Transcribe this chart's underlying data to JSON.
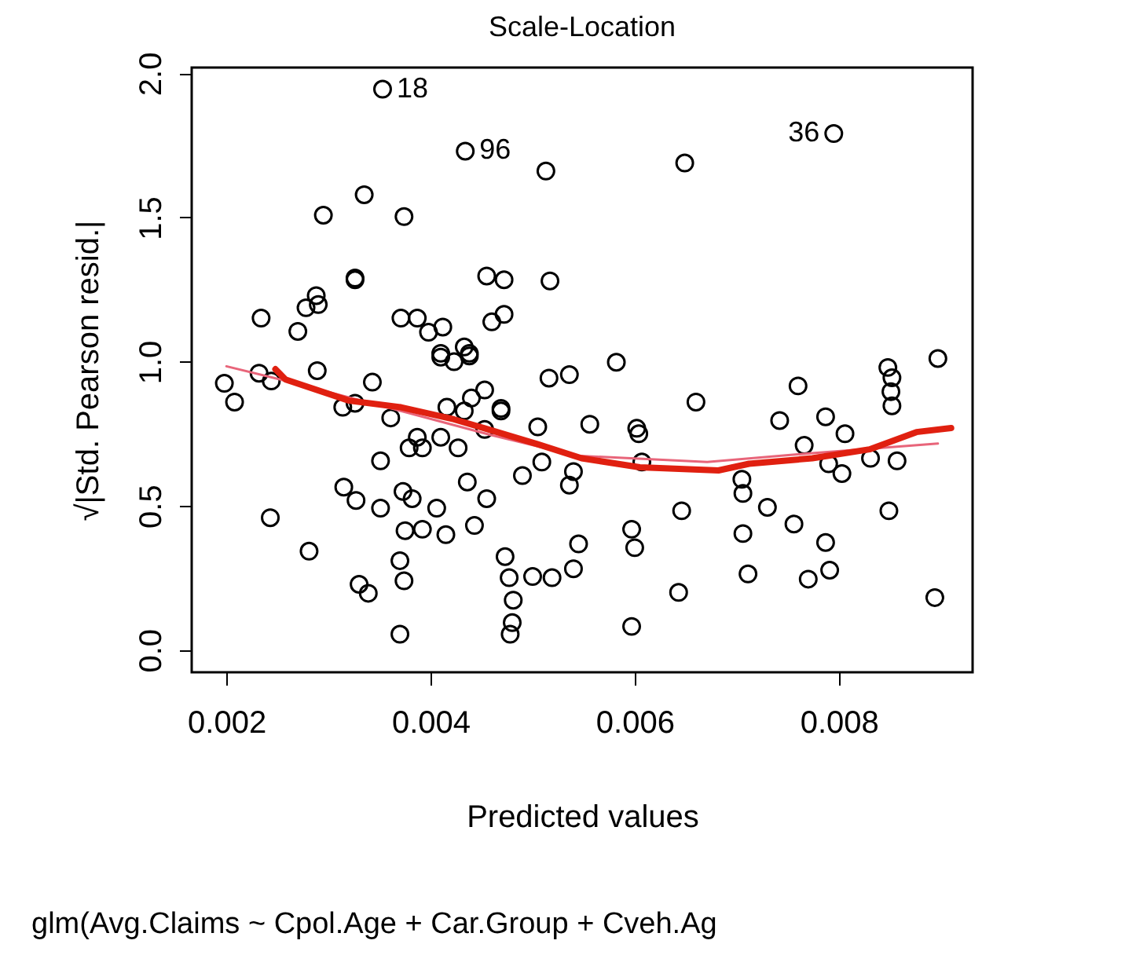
{
  "chart_data": {
    "type": "scatter",
    "title": "Scale-Location",
    "xlabel": "Predicted values",
    "ylabel": "√|Std. Pearson resid.|",
    "annotations": [
      {
        "text": "18",
        "x": 0.00353,
        "y": 1.945
      },
      {
        "text": "96",
        "x": 0.00434,
        "y": 1.73
      },
      {
        "text": "36",
        "x": 0.00795,
        "y": 1.791
      },
      "glm(Avg.Claims ~ Cpol.Age + Car.Group + Cveh.Ag"
    ],
    "xlim": [
      0.00166,
      0.00931
    ],
    "ylim": [
      -0.077,
      2.02
    ],
    "xticks": [
      0.002,
      0.004,
      0.006,
      0.008
    ],
    "yticks": [
      {
        "value": 0,
        "label": "0.0"
      },
      {
        "value": 0.5,
        "label": "0.5"
      },
      {
        "value": 1,
        "label": "1.0"
      },
      {
        "value": 1.5,
        "label": "1.5"
      },
      {
        "value": 2,
        "label": "2.0"
      }
    ],
    "grid": false,
    "series": [
      {
        "marker": "circle",
        "color": "#000000",
        "x": [
          0.00198,
          0.00208,
          0.00232,
          0.00244,
          0.00289,
          0.00343,
          0.00314,
          0.00326,
          0.00361,
          0.0041,
          0.00423,
          0.00438,
          0.00416,
          0.00433,
          0.0044,
          0.00453,
          0.00469,
          0.00469,
          0.00453,
          0.00387,
          0.00379,
          0.00392,
          0.0041,
          0.00427,
          0.00505,
          0.00516,
          0.00536,
          0.00509,
          0.0049,
          0.0054,
          0.00536,
          0.00545,
          0.0054,
          0.00351,
          0.00315,
          0.00327,
          0.00351,
          0.00373,
          0.00382,
          0.00406,
          0.00436,
          0.00455,
          0.00243,
          0.00281,
          0.00375,
          0.00392,
          0.00415,
          0.00443,
          0.00473,
          0.00477,
          0.00481,
          0.0048,
          0.00478,
          0.0037,
          0.00374,
          0.0033,
          0.00339,
          0.0037,
          0.005,
          0.00519,
          0.00582,
          0.00556,
          0.0066,
          0.00602,
          0.00604,
          0.00607,
          0.00597,
          0.006,
          0.00646,
          0.00643,
          0.00597,
          0.00705,
          0.00706,
          0.00706,
          0.00711,
          0.0073,
          0.00756,
          0.0077,
          0.00787,
          0.00791,
          0.00742,
          0.0076,
          0.00766,
          0.00787,
          0.00806,
          0.0079,
          0.00803,
          0.00831,
          0.00857,
          0.00849,
          0.00848,
          0.00852,
          0.00851,
          0.00852,
          0.00897,
          0.00894,
          0.00353,
          0.00434,
          0.00513,
          0.00335,
          0.00295,
          0.00374,
          0.00326,
          0.00326,
          0.00455,
          0.00472,
          0.00517,
          0.00234,
          0.0027,
          0.00278,
          0.00288,
          0.0029,
          0.00371,
          0.00387,
          0.00398,
          0.00412,
          0.0046,
          0.00472,
          0.0041,
          0.00433,
          0.00438,
          0.00649,
          0.00795
        ],
        "values": [
          0.925,
          0.86,
          0.96,
          0.933,
          0.969,
          0.929,
          0.842,
          0.856,
          0.805,
          1.016,
          1.0,
          1.02,
          0.842,
          0.829,
          0.874,
          0.902,
          0.838,
          0.829,
          0.765,
          0.738,
          0.701,
          0.701,
          0.738,
          0.701,
          0.774,
          0.943,
          0.955,
          0.652,
          0.605,
          0.619,
          0.572,
          0.368,
          0.282,
          0.656,
          0.565,
          0.519,
          0.492,
          0.55,
          0.525,
          0.492,
          0.583,
          0.525,
          0.459,
          0.343,
          0.414,
          0.419,
          0.4,
          0.432,
          0.324,
          0.251,
          0.173,
          0.095,
          0.055,
          0.31,
          0.24,
          0.228,
          0.197,
          0.055,
          0.255,
          0.251,
          0.998,
          0.783,
          0.86,
          0.769,
          0.75,
          0.652,
          0.419,
          0.355,
          0.483,
          0.2,
          0.082,
          0.592,
          0.543,
          0.404,
          0.264,
          0.495,
          0.437,
          0.246,
          0.373,
          0.277,
          0.796,
          0.916,
          0.71,
          0.809,
          0.75,
          0.646,
          0.612,
          0.665,
          0.656,
          0.483,
          0.98,
          0.944,
          0.896,
          0.847,
          1.011,
          0.182,
          1.945,
          1.73,
          1.661,
          1.579,
          1.508,
          1.503,
          1.284,
          1.29,
          1.297,
          1.284,
          1.28,
          1.151,
          1.105,
          1.187,
          1.229,
          1.198,
          1.151,
          1.151,
          1.102,
          1.12,
          1.138,
          1.164,
          1.029,
          1.051,
          1.029,
          1.689,
          1.791
        ]
      },
      {
        "type": "line",
        "color": "#e8657a",
        "x": [
          0.002,
          0.00253,
          0.00371,
          0.00458,
          0.00543,
          0.00671,
          0.00774,
          0.00897
        ],
        "values": [
          0.984,
          0.938,
          0.829,
          0.747,
          0.674,
          0.652,
          0.683,
          0.716
        ]
      },
      {
        "type": "line",
        "color": "#e02010",
        "x": [
          0.00248,
          0.00258,
          0.0032,
          0.00371,
          0.00423,
          0.00453,
          0.00505,
          0.00548,
          0.00605,
          0.00682,
          0.00712,
          0.00774,
          0.0083,
          0.00876,
          0.0091
        ],
        "values": [
          0.974,
          0.938,
          0.865,
          0.842,
          0.8,
          0.769,
          0.714,
          0.665,
          0.634,
          0.623,
          0.646,
          0.665,
          0.696,
          0.756,
          0.77
        ]
      }
    ]
  }
}
